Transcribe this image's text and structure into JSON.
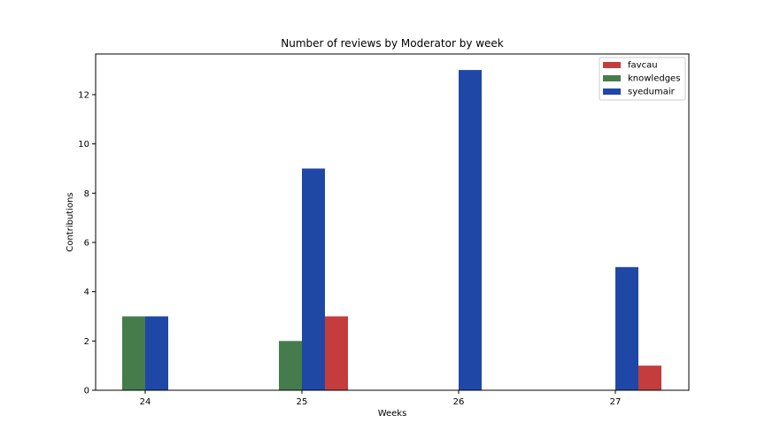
{
  "chart_data": {
    "type": "bar",
    "title": "Number of reviews by Moderator by week",
    "xlabel": "Weeks",
    "ylabel": "Contributions",
    "ylim": [
      0,
      13.65
    ],
    "yticks": [
      0,
      2,
      4,
      6,
      8,
      10,
      12
    ],
    "grid": false,
    "legend_position": "top-right",
    "categories": [
      "24",
      "25",
      "26",
      "27"
    ],
    "series": [
      {
        "name": "favcau",
        "color": "#c43c3c",
        "values": [
          0,
          3,
          0,
          1
        ]
      },
      {
        "name": "knowledges",
        "color": "#467c4c",
        "values": [
          3,
          2,
          0,
          0
        ]
      },
      {
        "name": "syedumair",
        "color": "#1f48a6",
        "values": [
          3,
          9,
          13,
          5
        ]
      }
    ],
    "bars": [
      {
        "category": "24",
        "series": "knowledges",
        "value": 3,
        "slot": -1
      },
      {
        "category": "24",
        "series": "syedumair",
        "value": 3,
        "slot": 0
      },
      {
        "category": "25",
        "series": "knowledges",
        "value": 2,
        "slot": -1
      },
      {
        "category": "25",
        "series": "syedumair",
        "value": 9,
        "slot": 0
      },
      {
        "category": "25",
        "series": "favcau",
        "value": 3,
        "slot": 1
      },
      {
        "category": "26",
        "series": "syedumair",
        "value": 13,
        "slot": 0
      },
      {
        "category": "27",
        "series": "syedumair",
        "value": 5,
        "slot": 0
      },
      {
        "category": "27",
        "series": "favcau",
        "value": 1,
        "slot": 1
      }
    ]
  }
}
